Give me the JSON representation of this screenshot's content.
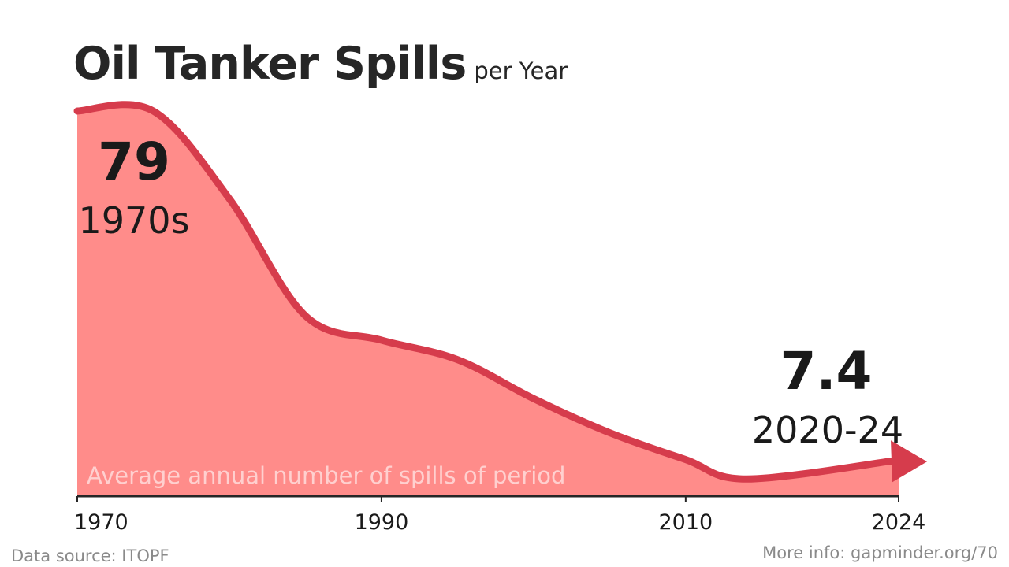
{
  "header": {
    "title": "Oil Tanker Spills",
    "subtitle": "per Year"
  },
  "footer": {
    "source": "Data source: ITOPF",
    "more_info": "More info: gapminder.org/70"
  },
  "colors": {
    "area_fill": "#ff8c8a",
    "line": "#d63c4c",
    "text_dark": "#1a1a1a",
    "area_note": "#ffd0cf",
    "axis": "#262626"
  },
  "chart_data": {
    "type": "area",
    "title": "Oil Tanker Spills",
    "subtitle": "per Year",
    "area_note": "Average annual number of spills of period",
    "x": [
      1970,
      1975,
      1980,
      1985,
      1990,
      1995,
      2000,
      2005,
      2010,
      2014,
      2024
    ],
    "y": [
      79,
      79,
      61,
      37,
      32,
      28,
      20,
      13,
      7.5,
      3.5,
      7.4
    ],
    "xlim": [
      1970,
      2024
    ],
    "ylim": [
      0,
      84
    ],
    "xticks": [
      1970,
      1990,
      2010,
      2024
    ],
    "annotations": [
      {
        "value": "79",
        "label": "1970s"
      },
      {
        "value": "7.4",
        "label": "2020-24"
      }
    ],
    "grid": false,
    "legend": "none"
  }
}
